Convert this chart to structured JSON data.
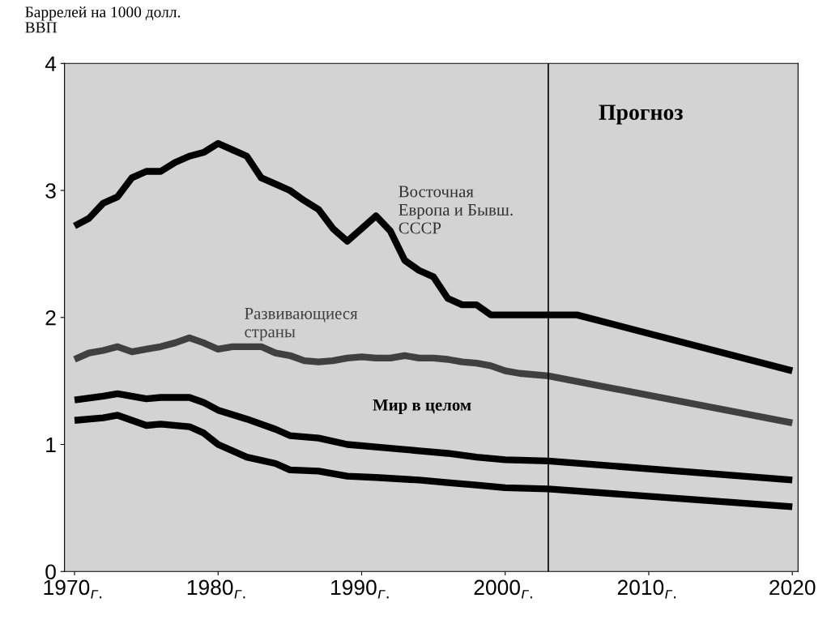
{
  "chart_data": {
    "type": "line",
    "ylabel": "Баррелей на 1000 долл.\nВВП",
    "xlim": [
      1969.3,
      2020.4
    ],
    "ylim": [
      0,
      4
    ],
    "xticks": [
      {
        "value": 1970,
        "label": "1970$_{г.}$"
      },
      {
        "value": 1980,
        "label": "1980$_{г.}$"
      },
      {
        "value": 1990,
        "label": "1990$_{г.}$"
      },
      {
        "value": 2000,
        "label": "2000$_{г.}$"
      },
      {
        "value": 2010,
        "label": "2010$_{г.}$"
      },
      2020
    ],
    "yticks": [
      0,
      1,
      2,
      3,
      4
    ],
    "grid": false,
    "legend": false,
    "marker": "none",
    "line_style": "solid",
    "series": [
      {
        "color": "#000000",
        "x": [
          1970,
          1971,
          1972,
          1973,
          1974,
          1975,
          1976,
          1977,
          1978,
          1979,
          1980,
          1981,
          1982,
          1983,
          1984,
          1985,
          1986,
          1987,
          1988,
          1989,
          1990,
          1991,
          1992,
          1993,
          1994,
          1995,
          1996,
          1997,
          1998,
          1999,
          2000,
          2005,
          2020
        ],
        "values": [
          2.72,
          2.78,
          2.9,
          2.95,
          3.1,
          3.15,
          3.15,
          3.22,
          3.27,
          3.3,
          3.37,
          3.32,
          3.27,
          3.1,
          3.05,
          3.0,
          2.92,
          2.85,
          2.7,
          2.6,
          2.7,
          2.8,
          2.68,
          2.45,
          2.37,
          2.32,
          2.15,
          2.1,
          2.1,
          2.02,
          2.02,
          2.02,
          1.58
        ]
      },
      {
        "color": "#404040",
        "x": [
          1970,
          1971,
          1972,
          1973,
          1974,
          1975,
          1976,
          1977,
          1978,
          1979,
          1980,
          1981,
          1982,
          1983,
          1984,
          1985,
          1986,
          1987,
          1988,
          1989,
          1990,
          1991,
          1992,
          1993,
          1994,
          1995,
          1996,
          1997,
          1998,
          1999,
          2000,
          2001,
          2003,
          2020
        ],
        "values": [
          1.67,
          1.72,
          1.74,
          1.77,
          1.73,
          1.75,
          1.77,
          1.8,
          1.84,
          1.8,
          1.75,
          1.77,
          1.77,
          1.77,
          1.72,
          1.7,
          1.66,
          1.65,
          1.66,
          1.68,
          1.69,
          1.68,
          1.68,
          1.7,
          1.68,
          1.68,
          1.67,
          1.65,
          1.64,
          1.62,
          1.58,
          1.56,
          1.54,
          1.17
        ]
      },
      {
        "color": "#000000",
        "x": [
          1970,
          1972,
          1973,
          1975,
          1976,
          1978,
          1979,
          1980,
          1982,
          1984,
          1985,
          1987,
          1989,
          1991,
          1994,
          1996,
          1998,
          2000,
          2003,
          2020
        ],
        "values": [
          1.35,
          1.38,
          1.4,
          1.36,
          1.37,
          1.37,
          1.33,
          1.27,
          1.2,
          1.12,
          1.07,
          1.05,
          1.0,
          0.98,
          0.95,
          0.93,
          0.9,
          0.88,
          0.87,
          0.72
        ]
      },
      {
        "color": "#000000",
        "x": [
          1970,
          1972,
          1973,
          1975,
          1976,
          1978,
          1979,
          1980,
          1982,
          1984,
          1985,
          1987,
          1989,
          1991,
          1994,
          1996,
          1998,
          2000,
          2003,
          2020
        ],
        "values": [
          1.19,
          1.21,
          1.23,
          1.15,
          1.16,
          1.14,
          1.09,
          1.0,
          0.9,
          0.85,
          0.8,
          0.79,
          0.75,
          0.74,
          0.72,
          0.7,
          0.68,
          0.66,
          0.65,
          0.51
        ]
      }
    ],
    "ref_lines": [
      {
        "axis": "x",
        "value": 2003,
        "label": "Прогноз",
        "color": "#000000",
        "line_style": "solid"
      }
    ],
    "annotations": [
      "Восточная\nЕвропа и Бывш.\nСССР",
      "Развивающиеся\nстраны",
      "Мир в целом"
    ]
  }
}
